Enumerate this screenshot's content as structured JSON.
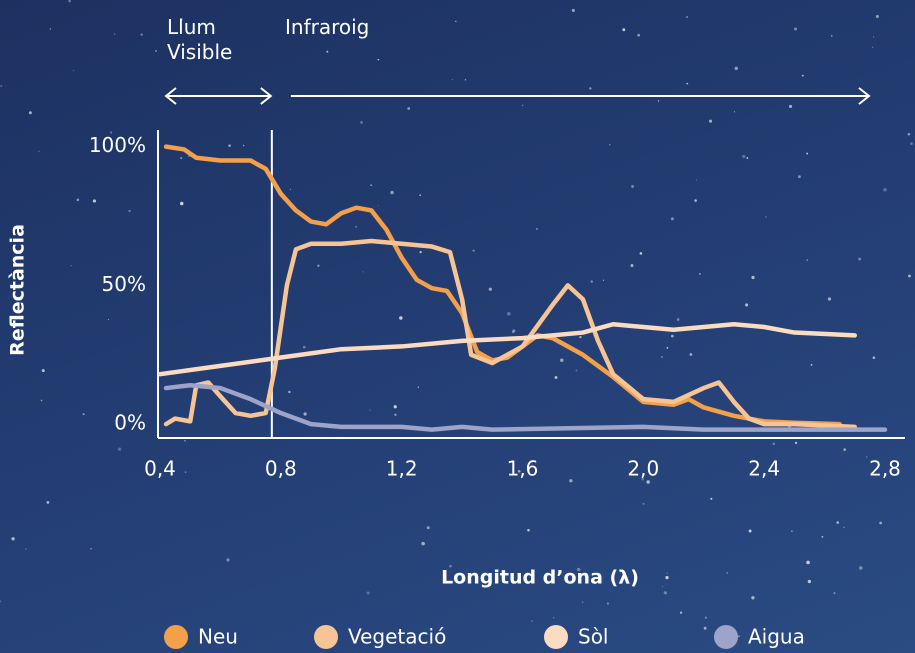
{
  "chart_data": {
    "type": "line",
    "xlabel": "Longitud d’ona (λ)",
    "ylabel": "Reflectància",
    "xlim": [
      0.4,
      2.8
    ],
    "xticks": [
      {
        "value": 0.4,
        "label": "0,4"
      },
      {
        "value": 0.8,
        "label": "0,8"
      },
      {
        "value": 1.2,
        "label": "1,2"
      },
      {
        "value": 1.6,
        "label": "1,6"
      },
      {
        "value": 2.0,
        "label": "2,0"
      },
      {
        "value": 2.4,
        "label": "2,4"
      },
      {
        "value": 2.8,
        "label": "2,8"
      }
    ],
    "ylim": [
      -5,
      106
    ],
    "yticks": [
      {
        "value": 0,
        "label": "0%"
      },
      {
        "value": 50,
        "label": "50%"
      },
      {
        "value": 100,
        "label": "100%"
      }
    ],
    "grid": false,
    "legend": "bottom",
    "regions": [
      {
        "label": "Llum Visible",
        "range": [
          0.4,
          0.8
        ]
      },
      {
        "label": "Infraroig",
        "range": [
          0.8,
          2.8
        ]
      }
    ],
    "series": [
      {
        "name": "Neu",
        "color": "#f4a04a",
        "x": [
          0.42,
          0.48,
          0.52,
          0.6,
          0.7,
          0.75,
          0.8,
          0.85,
          0.9,
          0.95,
          1.0,
          1.05,
          1.1,
          1.15,
          1.2,
          1.25,
          1.3,
          1.35,
          1.4,
          1.45,
          1.5,
          1.55,
          1.6,
          1.65,
          1.7,
          1.8,
          1.9,
          2.0,
          2.1,
          2.15,
          2.2,
          2.3,
          2.4,
          2.5,
          2.65
        ],
        "values": [
          100,
          99,
          96,
          95,
          95,
          92,
          83,
          77,
          73,
          72,
          76,
          78,
          77,
          70,
          60,
          52,
          49,
          48,
          40,
          26,
          23,
          24,
          28,
          32,
          31,
          25,
          17,
          8,
          7,
          9,
          6,
          3,
          1,
          0.5,
          0
        ]
      },
      {
        "name": "Vegetació",
        "color": "#f7c495",
        "x": [
          0.42,
          0.45,
          0.5,
          0.52,
          0.56,
          0.6,
          0.65,
          0.7,
          0.75,
          0.78,
          0.82,
          0.85,
          0.9,
          1.0,
          1.1,
          1.2,
          1.3,
          1.36,
          1.4,
          1.43,
          1.5,
          1.6,
          1.7,
          1.75,
          1.8,
          1.85,
          1.9,
          2.0,
          2.1,
          2.2,
          2.25,
          2.3,
          2.35,
          2.4,
          2.5,
          2.7
        ],
        "values": [
          0,
          2,
          1,
          14,
          15,
          10,
          4,
          3,
          4,
          20,
          50,
          63,
          65,
          65,
          66,
          65,
          64,
          62,
          45,
          25,
          22,
          28,
          43,
          50,
          45,
          30,
          18,
          9,
          8,
          13,
          15,
          8,
          2,
          0,
          0,
          -1
        ]
      },
      {
        "name": "Sòl",
        "color": "#fbdcc0",
        "x": [
          0.4,
          0.6,
          0.8,
          1.0,
          1.2,
          1.4,
          1.6,
          1.8,
          1.9,
          2.0,
          2.1,
          2.3,
          2.4,
          2.5,
          2.7
        ],
        "values": [
          18,
          21,
          24,
          27,
          28,
          30,
          31,
          33,
          36,
          35,
          34,
          36,
          35,
          33,
          32
        ]
      },
      {
        "name": "Aigua",
        "color": "#9ea3c9",
        "x": [
          0.42,
          0.5,
          0.6,
          0.7,
          0.8,
          0.9,
          1.0,
          1.2,
          1.3,
          1.4,
          1.5,
          2.0,
          2.2,
          2.8
        ],
        "values": [
          13,
          14,
          13,
          9,
          4,
          0,
          -1,
          -1,
          -2,
          -1,
          -2,
          -1,
          -2,
          -2
        ]
      }
    ]
  }
}
